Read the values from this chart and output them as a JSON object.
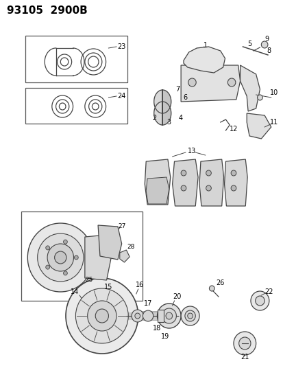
{
  "title": "93105  2900B",
  "bg_color": "#ffffff",
  "fig_width": 4.14,
  "fig_height": 5.33,
  "dpi": 100
}
